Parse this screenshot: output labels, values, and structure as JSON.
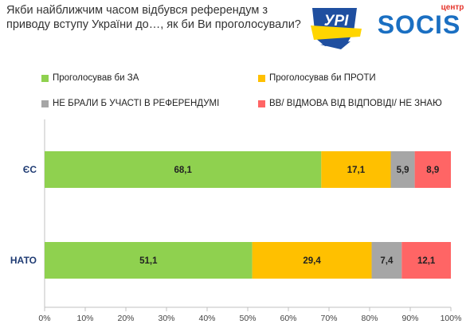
{
  "title": "Якби найближчим часом відбувся референдум з приводу вступу України до…, як би Ви проголосували?",
  "logo": {
    "left_mark": "УРІ",
    "brand_top": "центр",
    "brand_name": "SOCIS"
  },
  "colors": {
    "series": [
      "#8fd14f",
      "#ffc000",
      "#a6a6a6",
      "#ff6565"
    ],
    "axis": "#c0c0c0",
    "grid": "#e8e8e8"
  },
  "chart_data": {
    "type": "bar",
    "orientation": "horizontal",
    "stacked": true,
    "categories": [
      "ЄС",
      "НАТО"
    ],
    "series": [
      {
        "name": "Проголосував би ЗА",
        "values": [
          68.1,
          51.1
        ]
      },
      {
        "name": "Проголосував би ПРОТИ",
        "values": [
          17.1,
          29.4
        ]
      },
      {
        "name": "НЕ БРАЛИ Б УЧАСТІ В РЕФЕРЕНДУМІ",
        "values": [
          5.9,
          7.4
        ]
      },
      {
        "name": "ВВ/ ВІДМОВА ВІД ВІДПОВІДІ/ НЕ ЗНАЮ",
        "values": [
          8.9,
          12.1
        ]
      }
    ],
    "data_labels": [
      [
        "68,1",
        "51,1"
      ],
      [
        "17,1",
        "29,4"
      ],
      [
        "5,9",
        "7,4"
      ],
      [
        "8,9",
        "12,1"
      ]
    ],
    "x_ticks": [
      "0%",
      "10%",
      "20%",
      "30%",
      "40%",
      "50%",
      "60%",
      "70%",
      "80%",
      "90%",
      "100%"
    ],
    "xlim": [
      0,
      100
    ],
    "legend_position": "top",
    "grid": false
  }
}
